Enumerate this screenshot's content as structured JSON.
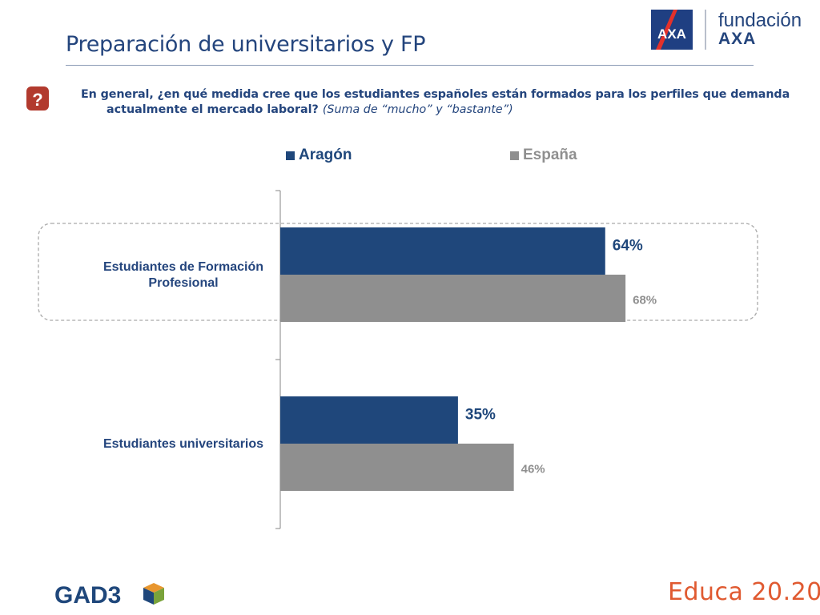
{
  "header": {
    "title": "Preparación de universitarios y FP",
    "brand_line1": "fundación",
    "brand_line2": "AXA",
    "logo_text": "AXA"
  },
  "question": {
    "icon": "question-mark-icon",
    "text_line1": "En general, ¿en qué medida cree que los estudiantes españoles están formados para los perfiles que demanda",
    "text_line2": "actualmente el mercado laboral?",
    "note": "(Suma de “mucho” y “bastante”)"
  },
  "chart_data": {
    "type": "bar",
    "orientation": "horizontal",
    "categories": [
      "Estudiantes de Formación Profesional",
      "Estudiantes universitarios"
    ],
    "category_lines": [
      [
        "Estudiantes de Formación",
        "Profesional"
      ],
      [
        "Estudiantes universitarios"
      ]
    ],
    "series": [
      {
        "name": "Aragón",
        "values": [
          64,
          35
        ],
        "labels": [
          "64%",
          "35%"
        ],
        "color": "#1f477b"
      },
      {
        "name": "España",
        "values": [
          68,
          46
        ],
        "labels": [
          "68%",
          "46%"
        ],
        "color": "#8f8f8f"
      }
    ],
    "highlighted_category": "Estudiantes de Formación Profesional",
    "legend_position": "top",
    "xlim": [
      0,
      100
    ],
    "grid": false
  },
  "footer": {
    "left_logo": "GAD3",
    "right_logo": "Educa 20.20"
  },
  "colors": {
    "primary": "#24457d",
    "aragon": "#1f477b",
    "espana": "#8f8f8f",
    "question_icon": "#b23a2e",
    "educa": "#e05a31",
    "gad3_green": "#7aa33b"
  }
}
